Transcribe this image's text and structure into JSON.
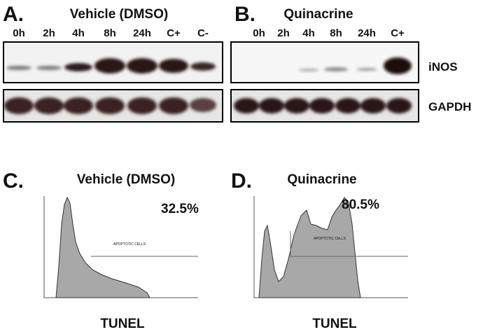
{
  "panels": [
    {
      "label": "A.",
      "title": "Vehicle (DMSO)",
      "lanes": [
        "0h",
        "2h",
        "4h",
        "8h",
        "24h",
        "C+",
        "C-"
      ]
    },
    {
      "label": "B.",
      "title": "Quinacrine",
      "lanes": [
        "0h",
        "2h",
        "4h",
        "8h",
        "24h",
        "C+"
      ],
      "bands": [
        "iNOS",
        "GAPDH"
      ]
    },
    {
      "label": "C.",
      "title": "Vehicle (DMSO)",
      "percent": "32.5%",
      "gate": "APOPTOTIC CELLS",
      "axis": "TUNEL"
    },
    {
      "label": "D.",
      "title": "Quinacrine",
      "percent": "80.5%",
      "gate": "APOPTOTIC CELLS",
      "axis": "TUNEL"
    }
  ]
}
